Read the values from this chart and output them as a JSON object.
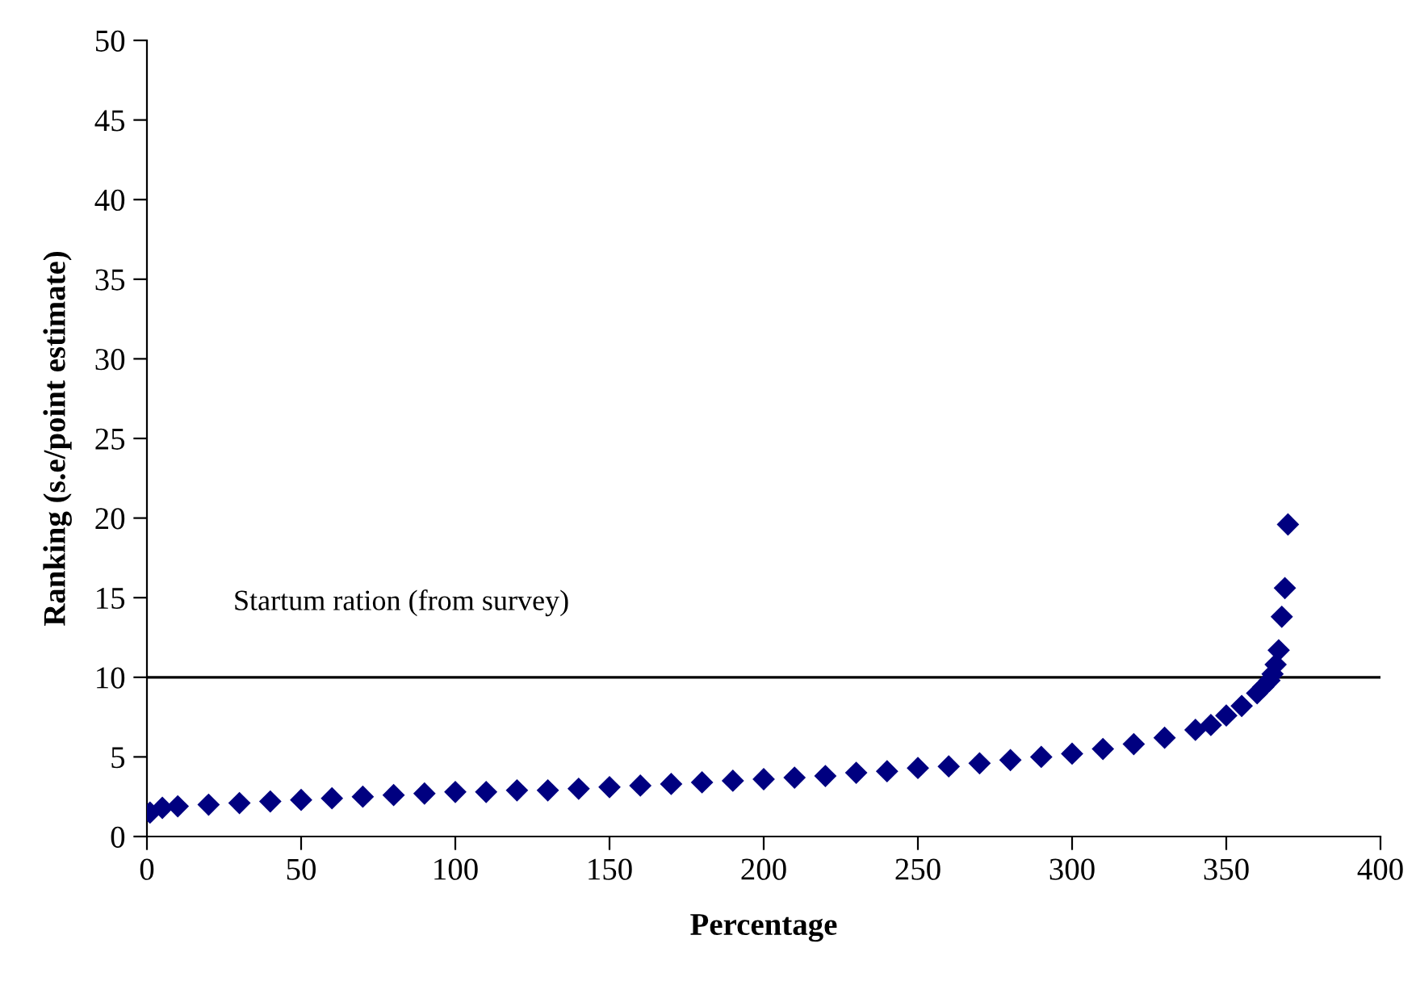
{
  "chart_data": {
    "type": "scatter",
    "xlabel": "Percentage",
    "ylabel": "Ranking (s.e/point estimate)",
    "x": [
      1,
      5,
      10,
      20,
      30,
      40,
      50,
      60,
      70,
      80,
      90,
      100,
      110,
      120,
      130,
      140,
      150,
      160,
      170,
      180,
      190,
      200,
      210,
      220,
      230,
      240,
      250,
      260,
      270,
      280,
      290,
      300,
      310,
      320,
      330,
      340,
      345,
      350,
      355,
      360,
      362,
      364,
      365,
      366,
      367,
      368,
      369,
      370
    ],
    "series": [
      {
        "color": "#000080",
        "values": [
          1.5,
          1.8,
          1.9,
          2.0,
          2.1,
          2.2,
          2.3,
          2.4,
          2.5,
          2.6,
          2.7,
          2.8,
          2.8,
          2.9,
          2.9,
          3.0,
          3.1,
          3.2,
          3.3,
          3.4,
          3.5,
          3.6,
          3.7,
          3.8,
          4.0,
          4.1,
          4.3,
          4.4,
          4.6,
          4.8,
          5.0,
          5.2,
          5.5,
          5.8,
          6.2,
          6.7,
          7.0,
          7.6,
          8.2,
          9.0,
          9.4,
          9.8,
          10.2,
          10.8,
          11.7,
          13.8,
          15.6,
          19.6
        ]
      }
    ],
    "marker": "diamond",
    "xlim": [
      0,
      400
    ],
    "xticks": [
      0,
      50,
      100,
      150,
      200,
      250,
      300,
      350,
      400
    ],
    "ylim": [
      0,
      50
    ],
    "yticks": [
      0,
      5,
      10,
      15,
      20,
      25,
      30,
      35,
      40,
      45,
      50
    ],
    "ref_lines": [
      {
        "axis": "y",
        "value": 10,
        "label": "Startum ration (from survey)",
        "color": "#000000"
      }
    ],
    "grid": false,
    "legend": false
  }
}
